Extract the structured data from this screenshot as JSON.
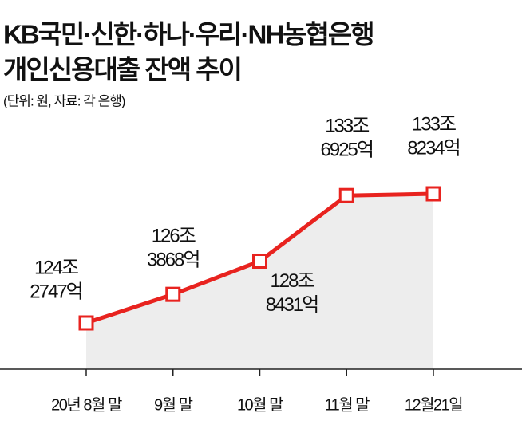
{
  "chart_data": {
    "type": "line",
    "title": "KB국민·신한·하나·우리·NH농협은행",
    "subtitle": "개인신용대출 잔액 추이",
    "note": "(단위: 원, 자료: 각 은행)",
    "categories": [
      "20년 8월 말",
      "9월 말",
      "10월 말",
      "11월 말",
      "12월21일"
    ],
    "values": [
      124.2747,
      126.3868,
      128.8431,
      133.6925,
      133.8234
    ],
    "value_labels": [
      [
        "124조",
        "2747억"
      ],
      [
        "126조",
        "3868억"
      ],
      [
        "128조",
        "8431억"
      ],
      [
        "133조",
        "6925억"
      ],
      [
        "133조",
        "8234억"
      ]
    ],
    "color": "#e8231f",
    "area_color": "#ededed"
  }
}
